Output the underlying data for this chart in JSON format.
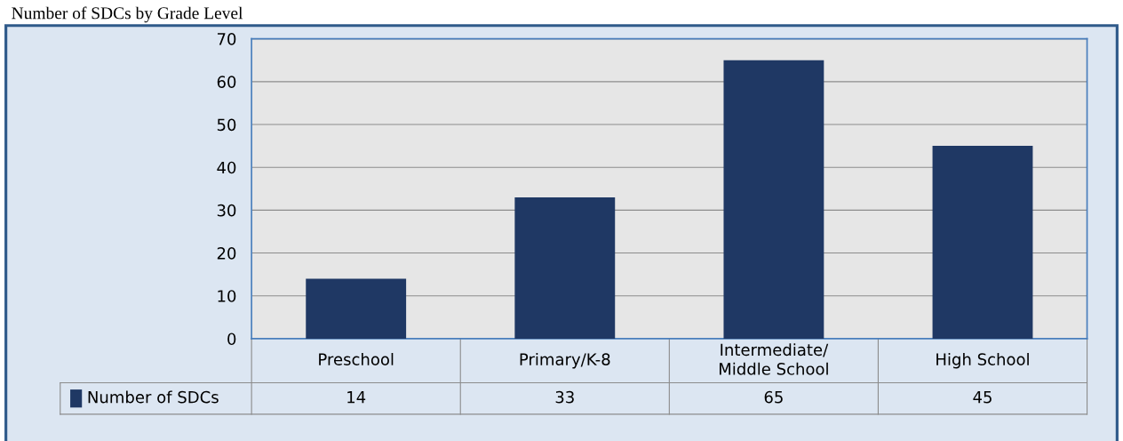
{
  "chart_data": {
    "type": "bar",
    "title": "Number of SDCs by Grade Level",
    "categories": [
      "Preschool",
      "Primary/K-8",
      "Intermediate/\nMiddle School",
      "High School"
    ],
    "series": [
      {
        "name": "Number of SDCs",
        "color": "#1f3864",
        "values": [
          14,
          33,
          65,
          45
        ]
      }
    ],
    "ylim": [
      0,
      70
    ],
    "yticks": [
      0,
      10,
      20,
      30,
      40,
      50,
      60,
      70
    ],
    "grid": "y",
    "data_labels": true,
    "legend": "bottom left"
  }
}
